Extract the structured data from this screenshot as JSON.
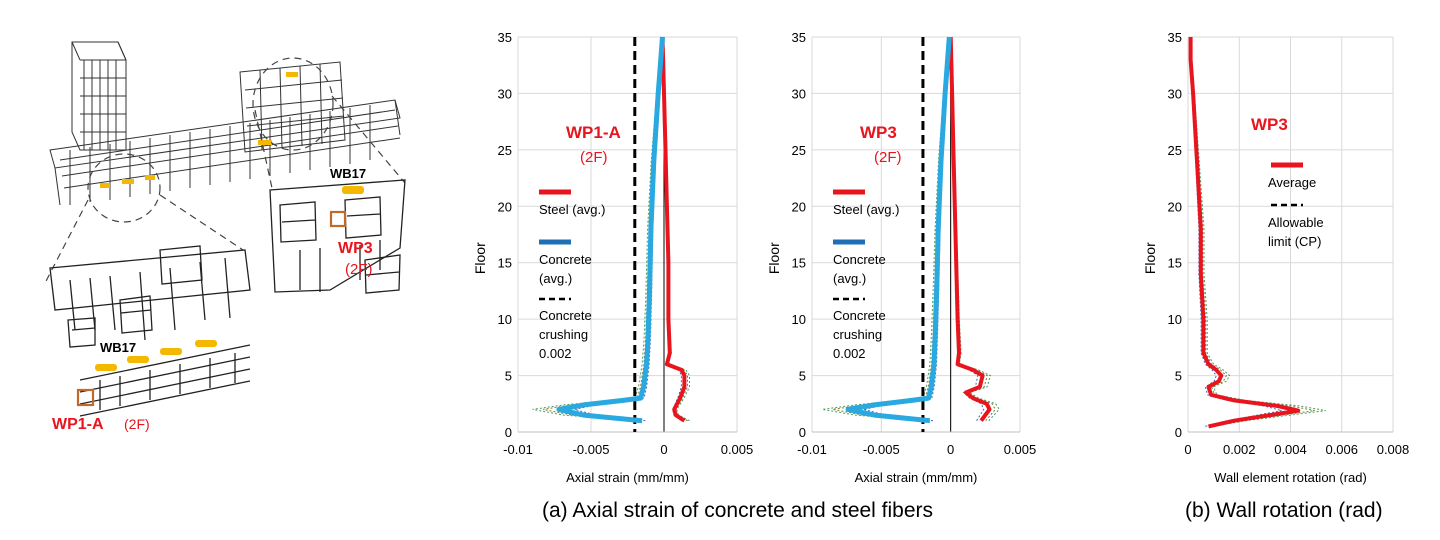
{
  "model": {
    "labels": {
      "wb17_top": "WB17",
      "wp3": "WP3",
      "wp3_floor": "(2F)",
      "wb17_bottom": "WB17",
      "wp1a": "WP1-A",
      "wp1a_floor": "(2F)"
    }
  },
  "colors": {
    "steel": "#e8141e",
    "concrete": "#2aa8e0",
    "legend_concrete": "#1f6fb5",
    "limit": "#000000",
    "beam_highlight": "#f5b800",
    "wall_highlight": "#c06a2a"
  },
  "chart_data": [
    {
      "type": "line",
      "panel": "WP1-A",
      "xlabel": "Axial strain (mm/mm)",
      "ylabel": "Floor",
      "xlim": [
        -0.01,
        0.005
      ],
      "ylim": [
        0,
        35
      ],
      "xticks": [
        "-0.01",
        "-0.005",
        "0",
        "0.005"
      ],
      "yticks": [
        "0",
        "5",
        "10",
        "15",
        "20",
        "25",
        "30",
        "35"
      ],
      "annotation_title": "WP1-A",
      "annotation_sub": "(2F)",
      "legend": [
        {
          "label": "Steel (avg.)",
          "style": "red-line"
        },
        {
          "label": "Concrete",
          "label2": "(avg.)",
          "style": "blue-line"
        },
        {
          "label": "Concrete",
          "label2": "crushing",
          "label3": "0.002",
          "style": "black-dash"
        }
      ],
      "limit_x": -0.002,
      "series": [
        {
          "key": "steel",
          "points": [
            [
              0.0014,
              1
            ],
            [
              0.0008,
              1.5
            ],
            [
              0.0007,
              2
            ],
            [
              0.0009,
              2.5
            ],
            [
              0.0011,
              3
            ],
            [
              0.0014,
              4
            ],
            [
              0.0014,
              5
            ],
            [
              0.0012,
              5.5
            ],
            [
              0.0002,
              6
            ],
            [
              0.0004,
              7
            ],
            [
              0.0003,
              10
            ],
            [
              0.0003,
              15
            ],
            [
              0.0002,
              20
            ],
            [
              0.0001,
              25
            ],
            [
              0.0,
              30
            ],
            [
              -0.0001,
              35
            ]
          ]
        },
        {
          "key": "concrete",
          "points": [
            [
              -0.0015,
              1
            ],
            [
              -0.0055,
              1.5
            ],
            [
              -0.0072,
              2
            ],
            [
              -0.0055,
              2.4
            ],
            [
              -0.0028,
              2.8
            ],
            [
              -0.0016,
              3
            ],
            [
              -0.0014,
              4
            ],
            [
              -0.0013,
              5
            ],
            [
              -0.0012,
              6
            ],
            [
              -0.0011,
              8
            ],
            [
              -0.001,
              12
            ],
            [
              -0.0009,
              18
            ],
            [
              -0.0007,
              24
            ],
            [
              -0.0004,
              30
            ],
            [
              -0.0001,
              35
            ]
          ]
        }
      ]
    },
    {
      "type": "line",
      "panel": "WP3",
      "xlabel": "Axial strain (mm/mm)",
      "ylabel": "Floor",
      "xlim": [
        -0.01,
        0.005
      ],
      "ylim": [
        0,
        35
      ],
      "xticks": [
        "-0.01",
        "-0.005",
        "0",
        "0.005"
      ],
      "yticks": [
        "0",
        "5",
        "10",
        "15",
        "20",
        "25",
        "30",
        "35"
      ],
      "annotation_title": "WP3",
      "annotation_sub": "(2F)",
      "legend": [
        {
          "label": "Steel (avg.)",
          "style": "red-line"
        },
        {
          "label": "Concrete",
          "label2": "(avg.)",
          "style": "blue-line"
        },
        {
          "label": "Concrete",
          "label2": "crushing",
          "label3": "0.002",
          "style": "black-dash"
        }
      ],
      "limit_x": -0.002,
      "series": [
        {
          "key": "steel",
          "points": [
            [
              0.0022,
              1
            ],
            [
              0.0025,
              1.5
            ],
            [
              0.0028,
              2
            ],
            [
              0.0026,
              2.5
            ],
            [
              0.0016,
              3
            ],
            [
              0.0011,
              3.5
            ],
            [
              0.0021,
              4
            ],
            [
              0.0023,
              5
            ],
            [
              0.0016,
              5.5
            ],
            [
              0.0005,
              6
            ],
            [
              0.0006,
              7
            ],
            [
              0.0005,
              10
            ],
            [
              0.0004,
              15
            ],
            [
              0.0003,
              20
            ],
            [
              0.0002,
              25
            ],
            [
              0.0001,
              30
            ],
            [
              0.0,
              35
            ]
          ]
        },
        {
          "key": "concrete",
          "points": [
            [
              -0.0015,
              1
            ],
            [
              -0.0055,
              1.5
            ],
            [
              -0.0074,
              2
            ],
            [
              -0.0055,
              2.4
            ],
            [
              -0.0028,
              2.8
            ],
            [
              -0.0016,
              3
            ],
            [
              -0.0014,
              4
            ],
            [
              -0.0012,
              6
            ],
            [
              -0.0011,
              9
            ],
            [
              -0.001,
              13
            ],
            [
              -0.0009,
              18
            ],
            [
              -0.0007,
              24
            ],
            [
              -0.0004,
              30
            ],
            [
              -0.0001,
              35
            ]
          ]
        }
      ]
    },
    {
      "type": "line",
      "panel": "WP3 rotation",
      "xlabel": "Wall element rotation (rad)",
      "ylabel": "Floor",
      "xlim": [
        0,
        0.008
      ],
      "ylim": [
        0,
        35
      ],
      "xticks": [
        "0",
        "0.002",
        "0.004",
        "0.006",
        "0.008"
      ],
      "yticks": [
        "0",
        "5",
        "10",
        "15",
        "20",
        "25",
        "30",
        "35"
      ],
      "annotation_title": "WP3",
      "legend": [
        {
          "label": "Average",
          "style": "red-line"
        },
        {
          "label": "Allowable",
          "label2": "limit (CP)",
          "style": "black-dash"
        }
      ],
      "series": [
        {
          "key": "average",
          "points": [
            [
              0.0008,
              0.5
            ],
            [
              0.0018,
              1
            ],
            [
              0.0032,
              1.5
            ],
            [
              0.0043,
              1.9
            ],
            [
              0.0035,
              2.3
            ],
            [
              0.0018,
              2.8
            ],
            [
              0.0009,
              3.3
            ],
            [
              0.0008,
              4
            ],
            [
              0.0012,
              4.5
            ],
            [
              0.0013,
              5
            ],
            [
              0.0011,
              5.5
            ],
            [
              0.0008,
              6
            ],
            [
              0.0006,
              7
            ],
            [
              0.0006,
              10
            ],
            [
              0.0005,
              14
            ],
            [
              0.0005,
              18
            ],
            [
              0.0004,
              22
            ],
            [
              0.0003,
              26
            ],
            [
              0.0002,
              30
            ],
            [
              0.0001,
              33
            ],
            [
              0.0001,
              35
            ]
          ]
        }
      ]
    }
  ],
  "captions": {
    "a": "(a) Axial strain of concrete and steel fibers",
    "b": "(b) Wall rotation (rad)"
  }
}
